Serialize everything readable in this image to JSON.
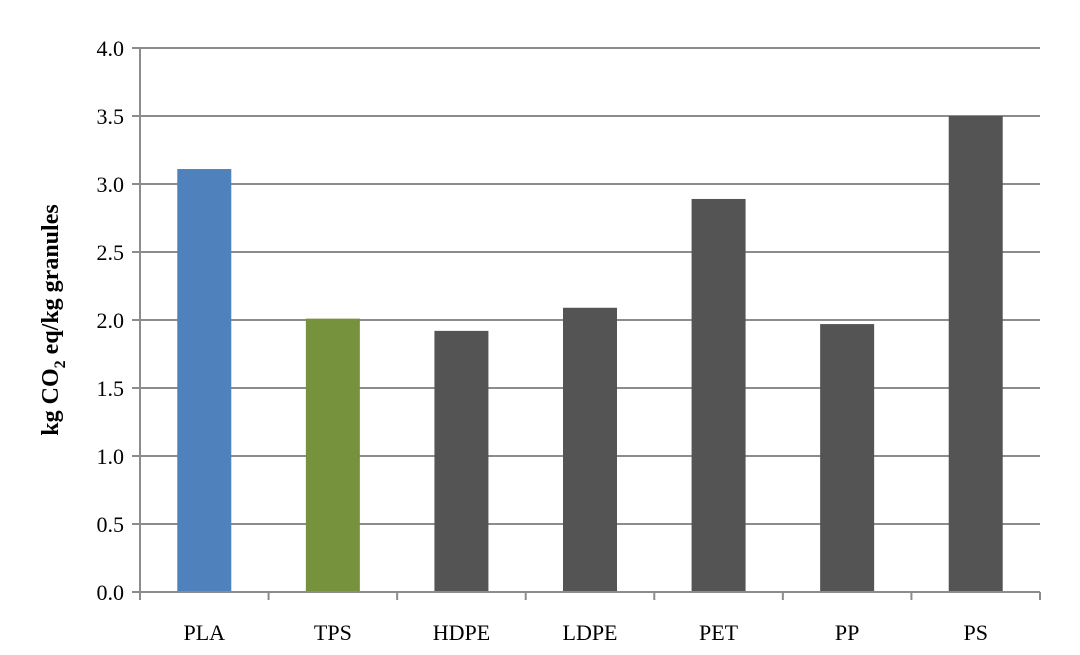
{
  "chart_data": {
    "type": "bar",
    "categories": [
      "PLA",
      "TPS",
      "HDPE",
      "LDPE",
      "PET",
      "PP",
      "PS"
    ],
    "values": [
      3.11,
      2.01,
      1.92,
      2.09,
      2.89,
      1.97,
      3.5
    ],
    "colors": [
      "#4f81bd",
      "#76923c",
      "#545454",
      "#545454",
      "#545454",
      "#545454",
      "#545454"
    ],
    "title": "",
    "xlabel": "",
    "ylabel": {
      "before_sub": "kg CO",
      "sub": "2",
      "after_sub": " eq/kg granules"
    },
    "ylim": [
      0,
      4.0
    ],
    "yticks": [
      "0.0",
      "0.5",
      "1.0",
      "1.5",
      "2.0",
      "2.5",
      "3.0",
      "3.5",
      "4.0"
    ],
    "grid": true,
    "gridline_color": "#8c8c8c",
    "legend": "none"
  }
}
